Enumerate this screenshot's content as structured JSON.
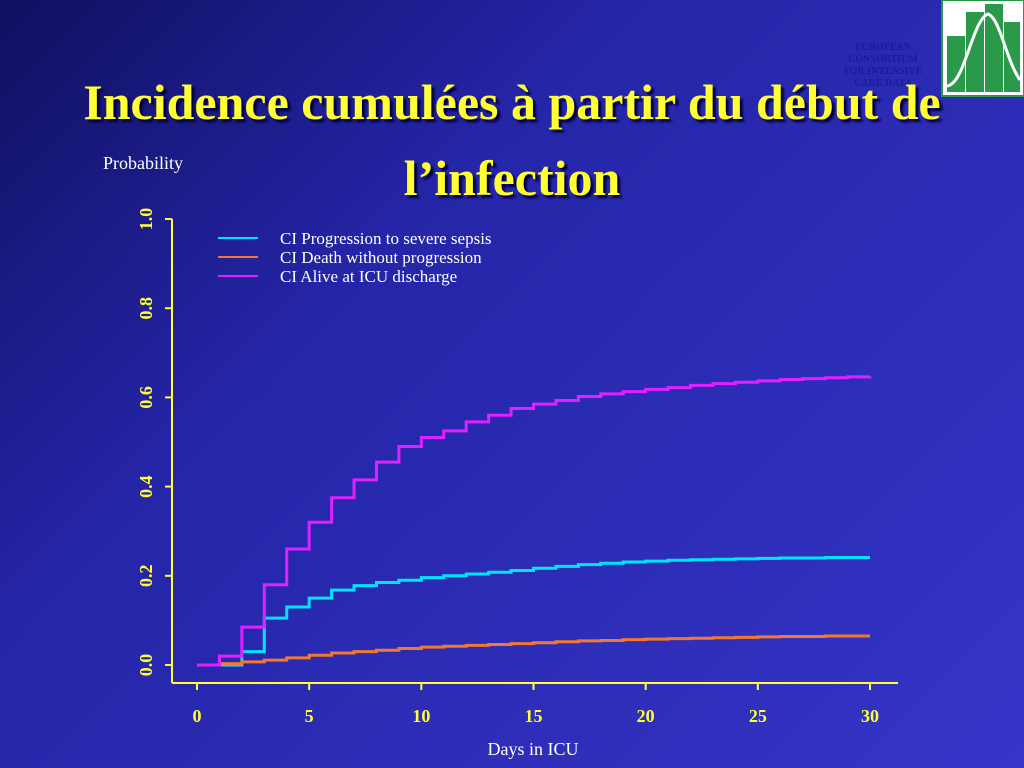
{
  "chart_data": {
    "type": "step",
    "title": "Incidence cumulées à partir du début de l’infection",
    "y_label": "Probability",
    "x_label": "Days in ICU",
    "x": [
      0,
      1,
      2,
      3,
      4,
      5,
      6,
      7,
      8,
      9,
      10,
      11,
      12,
      13,
      14,
      15,
      16,
      17,
      18,
      19,
      20,
      21,
      22,
      23,
      24,
      25,
      26,
      27,
      28,
      29,
      30
    ],
    "series": [
      {
        "name": "CI Progression to severe sepsis",
        "color": "#00e5ff",
        "values": [
          0,
          0,
          0.03,
          0.105,
          0.13,
          0.15,
          0.168,
          0.178,
          0.185,
          0.19,
          0.196,
          0.2,
          0.204,
          0.208,
          0.212,
          0.217,
          0.221,
          0.225,
          0.228,
          0.231,
          0.233,
          0.235,
          0.236,
          0.237,
          0.238,
          0.239,
          0.24,
          0.24,
          0.241,
          0.241,
          0.241
        ]
      },
      {
        "name": "CI Death without progression",
        "color": "#f07830",
        "values": [
          0,
          0.003,
          0.007,
          0.011,
          0.016,
          0.022,
          0.027,
          0.03,
          0.033,
          0.037,
          0.04,
          0.042,
          0.044,
          0.046,
          0.048,
          0.05,
          0.052,
          0.054,
          0.055,
          0.057,
          0.058,
          0.059,
          0.06,
          0.061,
          0.062,
          0.063,
          0.064,
          0.064,
          0.065,
          0.065,
          0.065
        ]
      },
      {
        "name": "CI Alive at ICU discharge",
        "color": "#e020ff",
        "values": [
          0,
          0.02,
          0.085,
          0.18,
          0.26,
          0.32,
          0.375,
          0.415,
          0.455,
          0.49,
          0.51,
          0.525,
          0.545,
          0.56,
          0.575,
          0.585,
          0.593,
          0.602,
          0.608,
          0.613,
          0.618,
          0.622,
          0.627,
          0.631,
          0.634,
          0.637,
          0.64,
          0.642,
          0.644,
          0.646,
          0.647
        ]
      }
    ],
    "xlim": [
      0,
      30
    ],
    "xticks": [
      0,
      5,
      10,
      15,
      20,
      25,
      30
    ],
    "ylim": [
      0,
      1
    ],
    "yticks": [
      {
        "value": 0,
        "label": "0.0"
      },
      0.2,
      0.4,
      0.6,
      0.8,
      {
        "value": 1,
        "label": "1.0"
      }
    ],
    "legend": "top-left",
    "grid": false
  },
  "logo": {
    "lines": [
      "EUROPEAN",
      "CONSORTIUM",
      "FOR INTENSIVE",
      "CARE DATA"
    ]
  }
}
